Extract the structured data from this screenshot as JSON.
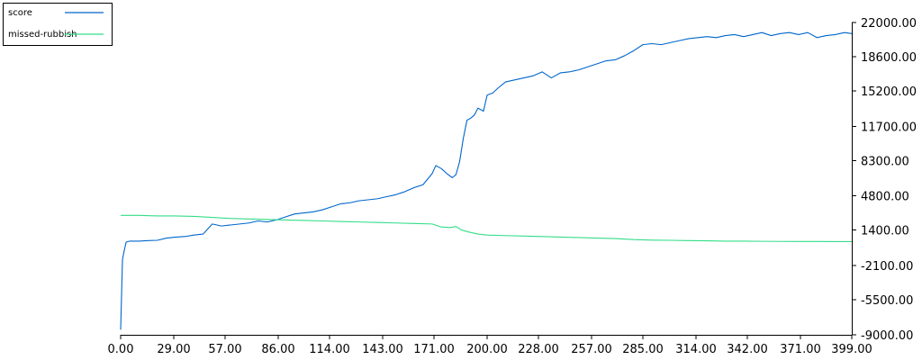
{
  "chart_data": {
    "type": "line",
    "title": "",
    "xlabel": "",
    "ylabel": "",
    "grid": false,
    "legend_position": "top-left",
    "xlim": [
      0,
      399
    ],
    "ylim": [
      -9000,
      22000
    ],
    "x_ticks": [
      "0.00",
      "29.00",
      "57.00",
      "86.00",
      "114.00",
      "143.00",
      "171.00",
      "200.00",
      "228.00",
      "257.00",
      "285.00",
      "314.00",
      "342.00",
      "371.00",
      "399.00"
    ],
    "y_ticks": [
      "22000.00",
      "18600.00",
      "15200.00",
      "11700.00",
      "8300.00",
      "4800.00",
      "1400.00",
      "-2100.00",
      "-5500.00",
      "-9000.00"
    ],
    "series": [
      {
        "name": "score",
        "color": "#0066cc",
        "points": [
          [
            0,
            -8500
          ],
          [
            1,
            -1500
          ],
          [
            2,
            -600
          ],
          [
            3,
            200
          ],
          [
            5,
            300
          ],
          [
            10,
            300
          ],
          [
            15,
            350
          ],
          [
            20,
            380
          ],
          [
            25,
            600
          ],
          [
            30,
            700
          ],
          [
            35,
            750
          ],
          [
            40,
            900
          ],
          [
            45,
            1000
          ],
          [
            50,
            2000
          ],
          [
            55,
            1800
          ],
          [
            60,
            1900
          ],
          [
            65,
            2000
          ],
          [
            70,
            2100
          ],
          [
            75,
            2300
          ],
          [
            80,
            2200
          ],
          [
            85,
            2400
          ],
          [
            90,
            2700
          ],
          [
            95,
            3000
          ],
          [
            100,
            3100
          ],
          [
            105,
            3200
          ],
          [
            110,
            3400
          ],
          [
            115,
            3700
          ],
          [
            120,
            4000
          ],
          [
            125,
            4100
          ],
          [
            130,
            4300
          ],
          [
            135,
            4400
          ],
          [
            140,
            4500
          ],
          [
            145,
            4700
          ],
          [
            150,
            4900
          ],
          [
            155,
            5200
          ],
          [
            160,
            5600
          ],
          [
            165,
            5900
          ],
          [
            170,
            7000
          ],
          [
            172,
            7800
          ],
          [
            175,
            7500
          ],
          [
            178,
            7000
          ],
          [
            181,
            6600
          ],
          [
            183,
            6900
          ],
          [
            185,
            8200
          ],
          [
            187,
            10500
          ],
          [
            189,
            12300
          ],
          [
            191,
            12500
          ],
          [
            193,
            12800
          ],
          [
            195,
            13500
          ],
          [
            198,
            13200
          ],
          [
            200,
            14800
          ],
          [
            203,
            15000
          ],
          [
            206,
            15500
          ],
          [
            210,
            16100
          ],
          [
            215,
            16300
          ],
          [
            220,
            16500
          ],
          [
            225,
            16700
          ],
          [
            230,
            17100
          ],
          [
            235,
            16500
          ],
          [
            240,
            17000
          ],
          [
            245,
            17100
          ],
          [
            250,
            17300
          ],
          [
            255,
            17600
          ],
          [
            260,
            17900
          ],
          [
            265,
            18200
          ],
          [
            270,
            18300
          ],
          [
            275,
            18700
          ],
          [
            280,
            19200
          ],
          [
            285,
            19800
          ],
          [
            290,
            19900
          ],
          [
            295,
            19800
          ],
          [
            300,
            20000
          ],
          [
            305,
            20200
          ],
          [
            310,
            20400
          ],
          [
            315,
            20500
          ],
          [
            320,
            20600
          ],
          [
            325,
            20500
          ],
          [
            330,
            20700
          ],
          [
            335,
            20800
          ],
          [
            340,
            20600
          ],
          [
            345,
            20800
          ],
          [
            350,
            21000
          ],
          [
            355,
            20700
          ],
          [
            360,
            20900
          ],
          [
            365,
            21000
          ],
          [
            370,
            20800
          ],
          [
            375,
            21000
          ],
          [
            380,
            20500
          ],
          [
            385,
            20700
          ],
          [
            390,
            20800
          ],
          [
            395,
            21000
          ],
          [
            399,
            20900
          ]
        ]
      },
      {
        "name": "missed-rubbish",
        "color": "#33dd88",
        "points": [
          [
            0,
            2850
          ],
          [
            10,
            2850
          ],
          [
            20,
            2800
          ],
          [
            30,
            2800
          ],
          [
            40,
            2750
          ],
          [
            50,
            2650
          ],
          [
            60,
            2550
          ],
          [
            70,
            2500
          ],
          [
            80,
            2450
          ],
          [
            90,
            2400
          ],
          [
            100,
            2350
          ],
          [
            110,
            2300
          ],
          [
            120,
            2250
          ],
          [
            130,
            2200
          ],
          [
            140,
            2150
          ],
          [
            150,
            2100
          ],
          [
            160,
            2050
          ],
          [
            170,
            2000
          ],
          [
            175,
            1700
          ],
          [
            180,
            1650
          ],
          [
            183,
            1750
          ],
          [
            186,
            1400
          ],
          [
            190,
            1200
          ],
          [
            195,
            1000
          ],
          [
            200,
            900
          ],
          [
            210,
            850
          ],
          [
            220,
            800
          ],
          [
            230,
            750
          ],
          [
            240,
            700
          ],
          [
            250,
            650
          ],
          [
            260,
            600
          ],
          [
            270,
            550
          ],
          [
            280,
            450
          ],
          [
            290,
            400
          ],
          [
            300,
            380
          ],
          [
            310,
            350
          ],
          [
            320,
            330
          ],
          [
            330,
            300
          ],
          [
            340,
            300
          ],
          [
            350,
            280
          ],
          [
            360,
            270
          ],
          [
            370,
            260
          ],
          [
            380,
            260
          ],
          [
            390,
            250
          ],
          [
            399,
            250
          ]
        ]
      }
    ]
  }
}
